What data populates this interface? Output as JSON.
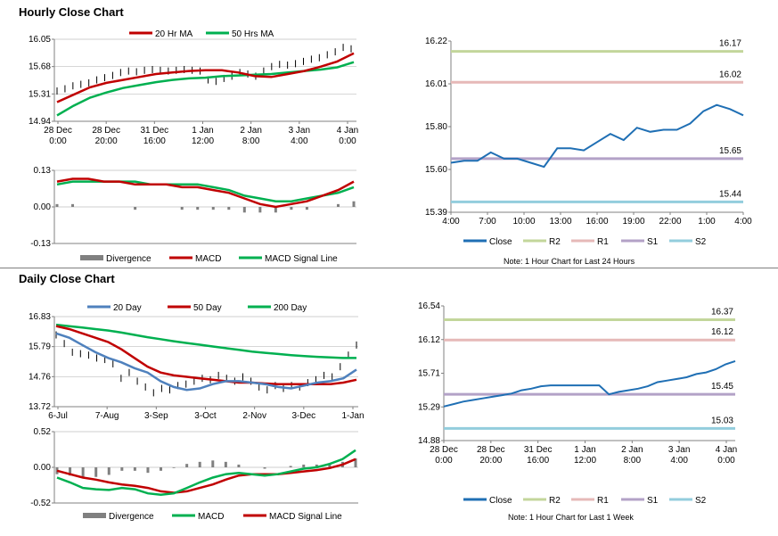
{
  "hourly": {
    "title": "Hourly Close Chart",
    "price_chart": {
      "legend": [
        {
          "name": "20 Hr MA",
          "color": "#c00000"
        },
        {
          "name": "50 Hrs MA",
          "color": "#00b050"
        }
      ],
      "y_ticks": [
        "16.05",
        "15.68",
        "15.31",
        "14.94"
      ],
      "y_range": [
        14.94,
        16.05
      ],
      "x_ticks": [
        [
          "28 Dec",
          "0:00"
        ],
        [
          "28 Dec",
          "20:00"
        ],
        [
          "31 Dec",
          "16:00"
        ],
        [
          "1 Jan",
          "12:00"
        ],
        [
          "2 Jan",
          "8:00"
        ],
        [
          "3 Jan",
          "4:00"
        ],
        [
          "4 Jan",
          "0:00"
        ]
      ],
      "ma20": [
        15.2,
        15.3,
        15.4,
        15.46,
        15.5,
        15.54,
        15.58,
        15.6,
        15.62,
        15.63,
        15.63,
        15.6,
        15.55,
        15.54,
        15.58,
        15.62,
        15.68,
        15.75,
        15.86
      ],
      "ma50": [
        15.02,
        15.15,
        15.26,
        15.33,
        15.39,
        15.43,
        15.47,
        15.5,
        15.52,
        15.53,
        15.55,
        15.56,
        15.57,
        15.58,
        15.6,
        15.62,
        15.64,
        15.67,
        15.74
      ],
      "close": [
        15.35,
        15.38,
        15.42,
        15.44,
        15.46,
        15.5,
        15.53,
        15.56,
        15.6,
        15.62,
        15.61,
        15.63,
        15.64,
        15.63,
        15.62,
        15.63,
        15.64,
        15.63,
        15.62,
        15.5,
        15.48,
        15.52,
        15.55,
        15.6,
        15.58,
        15.55,
        15.62,
        15.68,
        15.71,
        15.7,
        15.72,
        15.75,
        15.78,
        15.8,
        15.84,
        15.88,
        15.94,
        15.92
      ]
    },
    "macd_chart": {
      "y_ticks": [
        "0.13",
        "0.00",
        "-0.13"
      ],
      "y_range": [
        -0.13,
        0.13
      ],
      "legend": [
        {
          "name": "Divergence",
          "color": "#808080"
        },
        {
          "name": "MACD",
          "color": "#c00000"
        },
        {
          "name": "MACD Signal Line",
          "color": "#00b050"
        }
      ],
      "macd": [
        0.09,
        0.1,
        0.1,
        0.09,
        0.09,
        0.08,
        0.08,
        0.08,
        0.07,
        0.07,
        0.06,
        0.05,
        0.03,
        0.01,
        0.0,
        0.01,
        0.02,
        0.04,
        0.06,
        0.09
      ],
      "signal": [
        0.08,
        0.09,
        0.09,
        0.09,
        0.09,
        0.09,
        0.08,
        0.08,
        0.08,
        0.08,
        0.07,
        0.06,
        0.04,
        0.03,
        0.02,
        0.02,
        0.03,
        0.04,
        0.05,
        0.07
      ],
      "divergence": [
        0.01,
        0.01,
        0.0,
        0.0,
        0.0,
        -0.01,
        0.0,
        0.0,
        -0.01,
        -0.01,
        -0.01,
        -0.01,
        -0.02,
        -0.02,
        -0.02,
        -0.01,
        -0.01,
        0.0,
        0.01,
        0.02
      ]
    },
    "pivot_chart": {
      "y_ticks": [
        "16.22",
        "16.01",
        "15.80",
        "15.60",
        "15.39"
      ],
      "y_range": [
        15.39,
        16.22
      ],
      "x_ticks": [
        "4:00",
        "7:00",
        "10:00",
        "13:00",
        "16:00",
        "19:00",
        "22:00",
        "1:00",
        "4:00"
      ],
      "close": [
        15.63,
        15.64,
        15.64,
        15.68,
        15.65,
        15.65,
        15.63,
        15.61,
        15.7,
        15.7,
        15.69,
        15.73,
        15.77,
        15.74,
        15.8,
        15.78,
        15.79,
        15.79,
        15.82,
        15.88,
        15.91,
        15.89,
        15.86
      ],
      "levels": [
        {
          "name": "R2",
          "value": 16.17,
          "label": "16.17",
          "color": "#c3d69b"
        },
        {
          "name": "R1",
          "value": 16.02,
          "label": "16.02",
          "color": "#e6b9b8"
        },
        {
          "name": "S1",
          "value": 15.65,
          "label": "15.65",
          "color": "#b3a2c7"
        },
        {
          "name": "S2",
          "value": 15.44,
          "label": "15.44",
          "color": "#93cddd"
        }
      ],
      "close_legend": {
        "name": "Close",
        "color": "#1f6fb4"
      },
      "note": "Note: 1 Hour Chart for Last 24 Hours"
    }
  },
  "daily": {
    "title": "Daily Close Chart",
    "price_chart": {
      "legend": [
        {
          "name": "20 Day",
          "color": "#4f81bd"
        },
        {
          "name": "50 Day",
          "color": "#c00000"
        },
        {
          "name": "200 Day",
          "color": "#00b050"
        }
      ],
      "y_ticks": [
        "16.83",
        "15.79",
        "14.76",
        "13.72"
      ],
      "y_range": [
        13.72,
        16.83
      ],
      "x_ticks": [
        "6-Jul",
        "7-Aug",
        "3-Sep",
        "3-Oct",
        "2-Nov",
        "3-Dec",
        "1-Jan"
      ],
      "day20": [
        16.25,
        16.1,
        15.85,
        15.6,
        15.4,
        15.25,
        15.05,
        14.9,
        14.6,
        14.4,
        14.3,
        14.35,
        14.5,
        14.6,
        14.6,
        14.55,
        14.5,
        14.4,
        14.35,
        14.45,
        14.55,
        14.6,
        14.7,
        15.0
      ],
      "day50": [
        16.5,
        16.4,
        16.25,
        16.1,
        15.95,
        15.7,
        15.4,
        15.1,
        14.9,
        14.8,
        14.75,
        14.7,
        14.65,
        14.6,
        14.55,
        14.55,
        14.52,
        14.5,
        14.5,
        14.5,
        14.5,
        14.5,
        14.55,
        14.65
      ],
      "day200": [
        16.55,
        16.5,
        16.45,
        16.4,
        16.35,
        16.28,
        16.2,
        16.12,
        16.05,
        15.98,
        15.92,
        15.86,
        15.8,
        15.74,
        15.68,
        15.62,
        15.58,
        15.54,
        15.5,
        15.47,
        15.44,
        15.42,
        15.4,
        15.4
      ],
      "close": [
        16.2,
        15.9,
        15.6,
        15.55,
        15.5,
        15.4,
        15.35,
        15.2,
        14.7,
        14.9,
        14.6,
        14.4,
        14.2,
        14.35,
        14.3,
        14.45,
        14.5,
        14.6,
        14.7,
        14.65,
        14.8,
        14.7,
        14.6,
        14.75,
        14.6,
        14.4,
        14.3,
        14.45,
        14.35,
        14.45,
        14.4,
        14.55,
        14.65,
        14.8,
        14.75,
        15.1,
        15.5,
        15.85
      ]
    },
    "macd_chart": {
      "y_ticks": [
        "0.52",
        "0.00",
        "-0.52"
      ],
      "y_range": [
        -0.52,
        0.52
      ],
      "legend": [
        {
          "name": "Divergence",
          "color": "#808080"
        },
        {
          "name": "MACD",
          "color": "#00b050"
        },
        {
          "name": "MACD Signal Line",
          "color": "#c00000"
        }
      ],
      "macd": [
        -0.15,
        -0.22,
        -0.3,
        -0.32,
        -0.33,
        -0.3,
        -0.32,
        -0.38,
        -0.4,
        -0.38,
        -0.3,
        -0.22,
        -0.15,
        -0.1,
        -0.08,
        -0.1,
        -0.12,
        -0.1,
        -0.06,
        -0.02,
        0.0,
        0.05,
        0.12,
        0.25
      ],
      "signal": [
        -0.05,
        -0.1,
        -0.15,
        -0.18,
        -0.22,
        -0.25,
        -0.27,
        -0.3,
        -0.35,
        -0.37,
        -0.35,
        -0.3,
        -0.25,
        -0.18,
        -0.12,
        -0.1,
        -0.1,
        -0.1,
        -0.08,
        -0.06,
        -0.04,
        -0.01,
        0.04,
        0.12
      ],
      "divergence": [
        -0.1,
        -0.12,
        -0.15,
        -0.14,
        -0.11,
        -0.05,
        -0.05,
        -0.08,
        -0.05,
        -0.01,
        0.05,
        0.08,
        0.1,
        0.08,
        0.04,
        0.0,
        -0.02,
        0.0,
        0.02,
        0.04,
        0.04,
        0.06,
        0.08,
        0.13
      ]
    },
    "pivot_chart": {
      "y_ticks": [
        "16.54",
        "16.12",
        "15.71",
        "15.29",
        "14.88"
      ],
      "y_range": [
        14.88,
        16.54
      ],
      "x_ticks": [
        [
          "28 Dec",
          "0:00"
        ],
        [
          "28 Dec",
          "20:00"
        ],
        [
          "31 Dec",
          "16:00"
        ],
        [
          "1 Jan",
          "12:00"
        ],
        [
          "2 Jan",
          "8:00"
        ],
        [
          "3 Jan",
          "4:00"
        ],
        [
          "4 Jan",
          "0:00"
        ]
      ],
      "close": [
        15.3,
        15.33,
        15.36,
        15.38,
        15.4,
        15.42,
        15.44,
        15.46,
        15.5,
        15.52,
        15.55,
        15.56,
        15.56,
        15.56,
        15.56,
        15.56,
        15.56,
        15.45,
        15.48,
        15.5,
        15.52,
        15.55,
        15.6,
        15.62,
        15.64,
        15.66,
        15.7,
        15.72,
        15.76,
        15.82,
        15.86
      ],
      "levels": [
        {
          "name": "R2",
          "value": 16.37,
          "label": "16.37",
          "color": "#c3d69b"
        },
        {
          "name": "R1",
          "value": 16.12,
          "label": "16.12",
          "color": "#e6b9b8"
        },
        {
          "name": "S1",
          "value": 15.45,
          "label": "15.45",
          "color": "#b3a2c7"
        },
        {
          "name": "S2",
          "value": 15.03,
          "label": "15.03",
          "color": "#93cddd"
        }
      ],
      "close_legend": {
        "name": "Close",
        "color": "#1f6fb4"
      },
      "note": "Note: 1 Hour Chart for Last 1 Week"
    }
  }
}
